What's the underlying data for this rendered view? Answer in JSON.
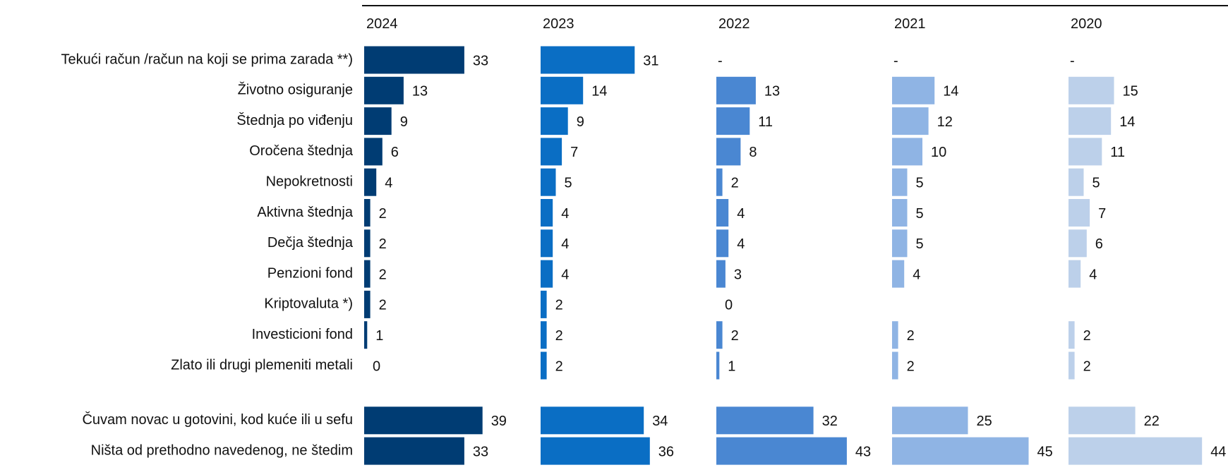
{
  "chart_data": {
    "type": "bar",
    "orientation": "horizontal",
    "title": "",
    "xlabel": "",
    "ylabel": "",
    "grid": false,
    "legend": "none",
    "categories": [
      "Tekući račun /račun na koji se prima zarada **)",
      "Životno osiguranje",
      "Štednja po viđenju",
      "Oročena štednja",
      "Nepokretnosti",
      "Aktivna štednja",
      "Dečja štednja",
      "Penzioni fond",
      "Kriptovaluta *)",
      "Investicioni fond",
      "Zlato ili drugi plemeniti metali",
      "Čuvam novac u gotovini, kod kuće ili u sefu",
      "Ništa od prethodno navedenog, ne štedim"
    ],
    "group_break_after_index": 10,
    "series": [
      {
        "name": "2024",
        "color": "#003c73",
        "values": [
          33,
          13,
          9,
          6,
          4,
          2,
          2,
          2,
          2,
          1,
          0,
          39,
          33
        ],
        "labels": [
          "33",
          "13",
          "9",
          "6",
          "4",
          "2",
          "2",
          "2",
          "2",
          "1",
          "0",
          "39",
          "33"
        ]
      },
      {
        "name": "2023",
        "color": "#0a6ec4",
        "values": [
          31,
          14,
          9,
          7,
          5,
          4,
          4,
          4,
          2,
          2,
          2,
          34,
          36
        ],
        "labels": [
          "31",
          "14",
          "9",
          "7",
          "5",
          "4",
          "4",
          "4",
          "2",
          "2",
          "2",
          "34",
          "36"
        ]
      },
      {
        "name": "2022",
        "color": "#4a87d2",
        "values": [
          null,
          13,
          11,
          8,
          2,
          4,
          4,
          3,
          0,
          2,
          1,
          32,
          43
        ],
        "labels": [
          "-",
          "13",
          "11",
          "8",
          "2",
          "4",
          "4",
          "3",
          "0",
          "2",
          "1",
          "32",
          "43"
        ]
      },
      {
        "name": "2021",
        "color": "#8fb4e4",
        "values": [
          null,
          14,
          12,
          10,
          5,
          5,
          5,
          4,
          null,
          2,
          2,
          25,
          45
        ],
        "labels": [
          "-",
          "14",
          "12",
          "10",
          "5",
          "5",
          "5",
          "4",
          "",
          "2",
          "2",
          "25",
          "45"
        ]
      },
      {
        "name": "2020",
        "color": "#bcd0ea",
        "values": [
          null,
          15,
          14,
          11,
          5,
          7,
          6,
          4,
          null,
          2,
          2,
          22,
          44
        ],
        "labels": [
          "-",
          "15",
          "14",
          "11",
          "5",
          "7",
          "6",
          "4",
          "",
          "2",
          "2",
          "22",
          "44"
        ]
      }
    ]
  }
}
